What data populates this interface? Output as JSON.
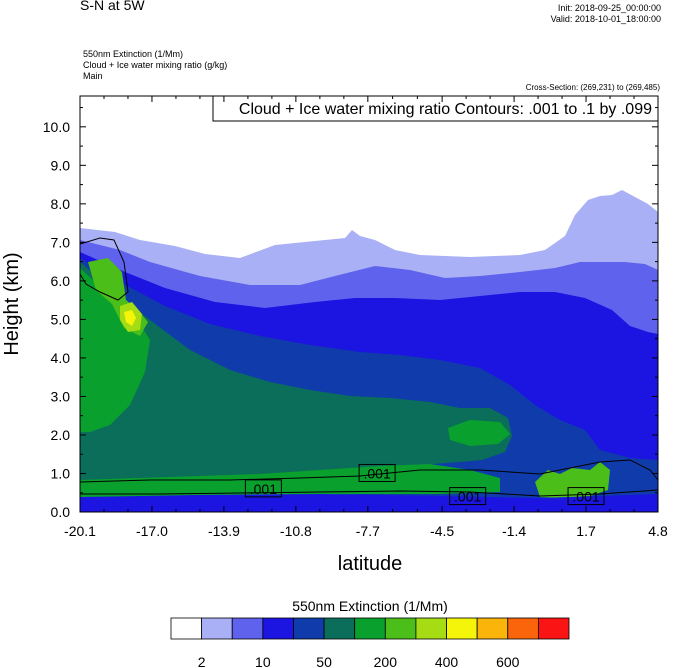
{
  "header": {
    "title": "S-N at 5W",
    "init": "Init: 2018-09-25_00:00:00",
    "valid": "Valid: 2018-10-01_18:00:00",
    "variables": [
      "550nm Extinction   (1/Mm)",
      "Cloud + Ice water mixing ratio   (g/kg)",
      "Main"
    ],
    "cross_section": "Cross-Section: (269,231) to (269,485)"
  },
  "chart_data": {
    "type": "heatmap",
    "title": "S-N at 5W",
    "contour_title": "Cloud + Ice water mixing ratio Contours: .001 to .1 by .099",
    "xlabel": "latitude",
    "ylabel": "Height (km)",
    "x_ticks": [
      "-20.1",
      "-17.0",
      "-13.9",
      "-10.8",
      "-7.7",
      "-4.5",
      "-1.4",
      "1.7",
      "4.8"
    ],
    "y_ticks": [
      "0.0",
      "1.0",
      "2.0",
      "3.0",
      "4.0",
      "5.0",
      "6.0",
      "7.0",
      "8.0",
      "9.0",
      "10.0"
    ],
    "xlim": [
      -20.1,
      4.8
    ],
    "ylim": [
      0.0,
      10.8
    ],
    "contour_labels": [
      {
        "text": ".001",
        "x": -12.2,
        "y": 0.6
      },
      {
        "text": ".001",
        "x": -7.3,
        "y": 1.0
      },
      {
        "text": ".001",
        "x": -3.4,
        "y": 0.4
      },
      {
        "text": ".001",
        "x": 1.7,
        "y": 0.4
      }
    ],
    "colorbar": {
      "title": "550nm Extinction  (1/Mm)",
      "colors": [
        "#ffffff",
        "#aab0f5",
        "#5f62ed",
        "#1c14e0",
        "#0f3caa",
        "#0a6e5a",
        "#0aa02d",
        "#4bbe19",
        "#a5dc14",
        "#f5f50a",
        "#fab40a",
        "#fa640a",
        "#fa1414"
      ],
      "labels": [
        "2",
        "10",
        "50",
        "200",
        "400",
        "600"
      ]
    }
  }
}
